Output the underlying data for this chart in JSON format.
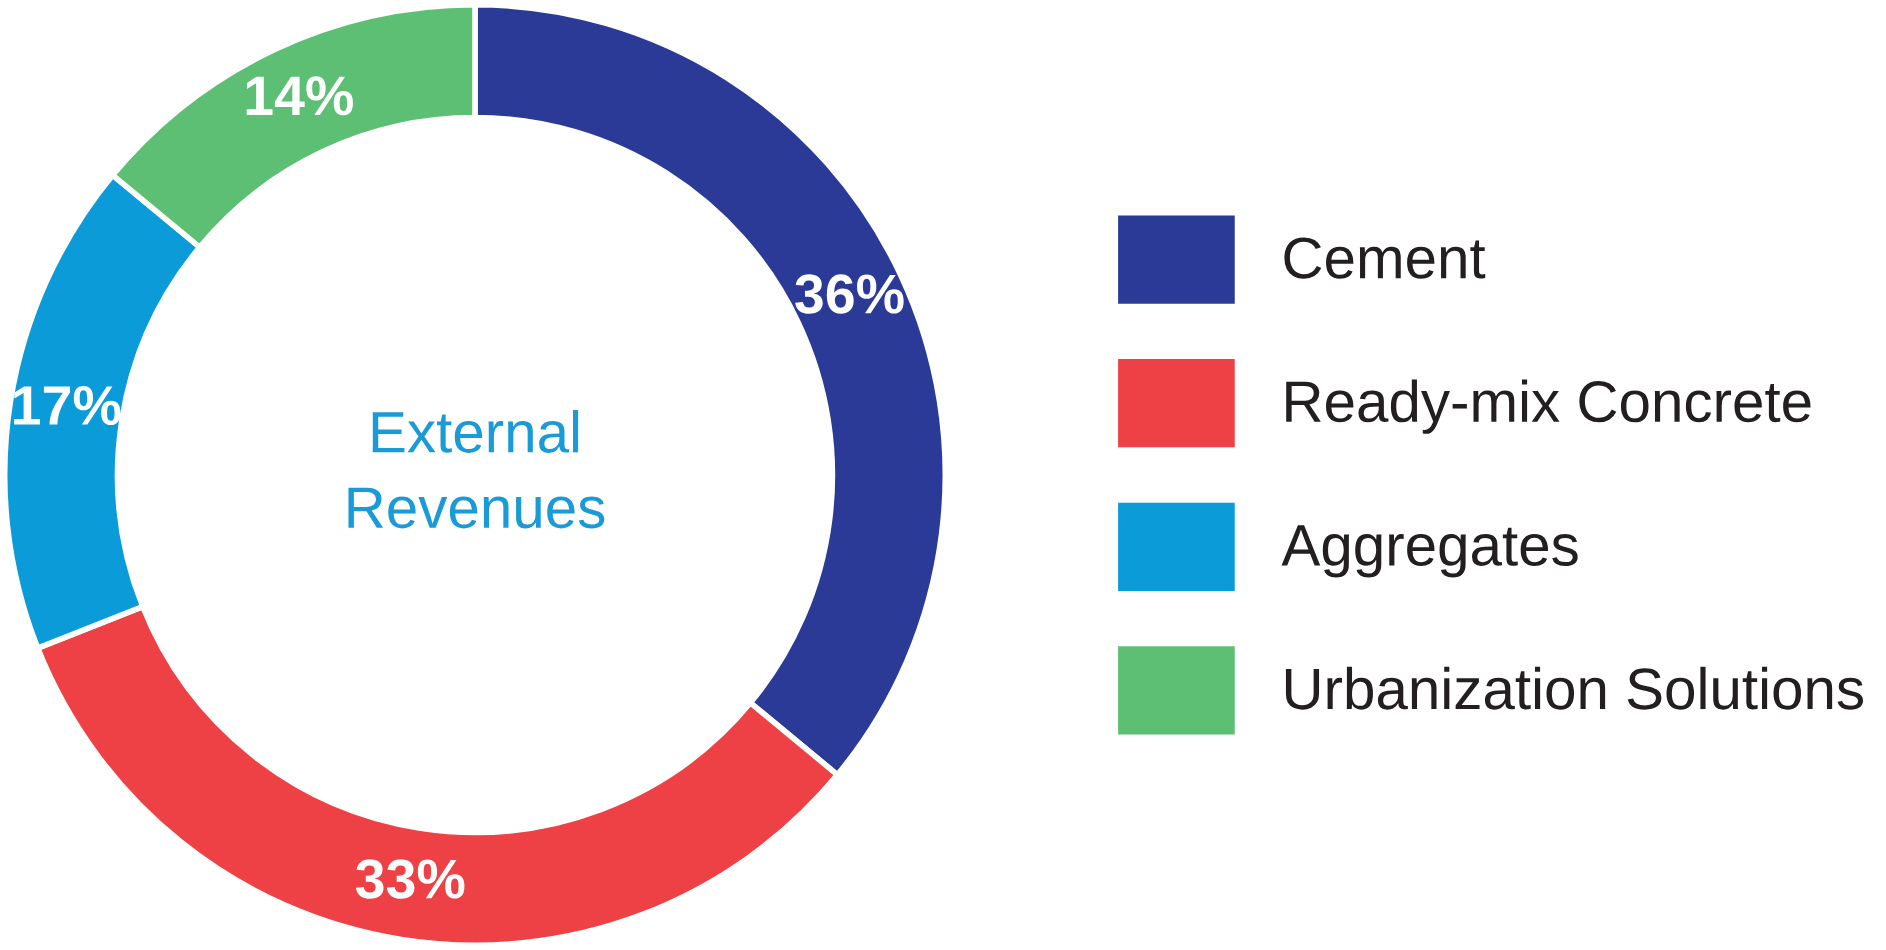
{
  "chart_data": {
    "type": "donut",
    "categories": [
      "Cement",
      "Ready-mix Concrete",
      "Aggregates",
      "Urbanization Solutions"
    ],
    "values": [
      36,
      33,
      17,
      14
    ],
    "colors": [
      "#2b3a97",
      "#ee4145",
      "#0a9bd8",
      "#5dbf74"
    ],
    "value_labels": [
      "36%",
      "33%",
      "17%",
      "14%"
    ],
    "annotations": [
      "External\nRevenues"
    ],
    "legend": "right"
  }
}
